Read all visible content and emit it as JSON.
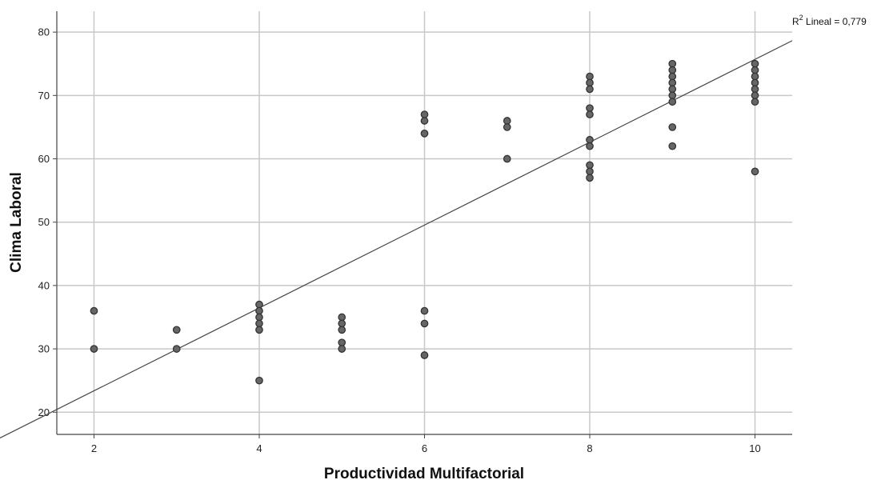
{
  "chart_data": {
    "type": "scatter",
    "xlabel": "Productividad Multifactorial",
    "ylabel": "Clima Laboral",
    "xlim": [
      1.55,
      10.45
    ],
    "ylim": [
      16.5,
      83.3
    ],
    "x_ticks": [
      2,
      4,
      6,
      8,
      10
    ],
    "y_ticks": [
      20,
      30,
      40,
      50,
      60,
      70,
      80
    ],
    "grid": true,
    "fit_line": {
      "slope": 6.54,
      "intercept": 10.3,
      "label_prefix": "R",
      "label_sup": "2",
      "label_suffix": " Lineal = 0,779"
    },
    "colors": {
      "point_fill": "#666666",
      "point_stroke": "#333333",
      "grid": "#c8c8c8",
      "axis": "#444444",
      "fit_line": "#444444"
    },
    "points": [
      {
        "x": 2,
        "y": 36
      },
      {
        "x": 2,
        "y": 30
      },
      {
        "x": 3,
        "y": 33
      },
      {
        "x": 3,
        "y": 30
      },
      {
        "x": 4,
        "y": 37
      },
      {
        "x": 4,
        "y": 36
      },
      {
        "x": 4,
        "y": 35
      },
      {
        "x": 4,
        "y": 34
      },
      {
        "x": 4,
        "y": 33
      },
      {
        "x": 4,
        "y": 25
      },
      {
        "x": 5,
        "y": 35
      },
      {
        "x": 5,
        "y": 34
      },
      {
        "x": 5,
        "y": 33
      },
      {
        "x": 5,
        "y": 31
      },
      {
        "x": 5,
        "y": 30
      },
      {
        "x": 6,
        "y": 67
      },
      {
        "x": 6,
        "y": 66
      },
      {
        "x": 6,
        "y": 64
      },
      {
        "x": 6,
        "y": 36
      },
      {
        "x": 6,
        "y": 34
      },
      {
        "x": 6,
        "y": 29
      },
      {
        "x": 7,
        "y": 66
      },
      {
        "x": 7,
        "y": 65
      },
      {
        "x": 7,
        "y": 60
      },
      {
        "x": 8,
        "y": 73
      },
      {
        "x": 8,
        "y": 72
      },
      {
        "x": 8,
        "y": 71
      },
      {
        "x": 8,
        "y": 68
      },
      {
        "x": 8,
        "y": 67
      },
      {
        "x": 8,
        "y": 63
      },
      {
        "x": 8,
        "y": 62
      },
      {
        "x": 8,
        "y": 59
      },
      {
        "x": 8,
        "y": 58
      },
      {
        "x": 8,
        "y": 57
      },
      {
        "x": 9,
        "y": 75
      },
      {
        "x": 9,
        "y": 74
      },
      {
        "x": 9,
        "y": 73
      },
      {
        "x": 9,
        "y": 72
      },
      {
        "x": 9,
        "y": 71
      },
      {
        "x": 9,
        "y": 70
      },
      {
        "x": 9,
        "y": 69
      },
      {
        "x": 9,
        "y": 65
      },
      {
        "x": 9,
        "y": 62
      },
      {
        "x": 10,
        "y": 75
      },
      {
        "x": 10,
        "y": 74
      },
      {
        "x": 10,
        "y": 73
      },
      {
        "x": 10,
        "y": 72
      },
      {
        "x": 10,
        "y": 71
      },
      {
        "x": 10,
        "y": 70
      },
      {
        "x": 10,
        "y": 69
      },
      {
        "x": 10,
        "y": 58
      }
    ]
  }
}
